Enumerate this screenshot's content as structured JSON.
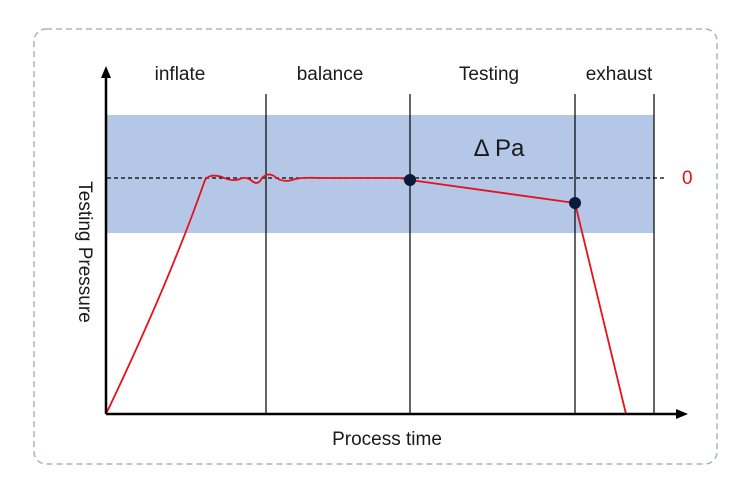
{
  "diagram": {
    "phases": [
      {
        "label": "inflate"
      },
      {
        "label": "balance"
      },
      {
        "label": "Testing"
      },
      {
        "label": "exhaust"
      }
    ],
    "band_label": "Δ Pa",
    "reference_label": "0",
    "x_axis_label": "Process time",
    "y_axis_label": "Testing Pressure",
    "colors": {
      "band": "#b4c7e7",
      "curve": "#e8101a",
      "reference_label": "#e8101a",
      "axis": "#000000",
      "frame_border": "#aab3c5",
      "marker": "#0b1a3a"
    }
  }
}
